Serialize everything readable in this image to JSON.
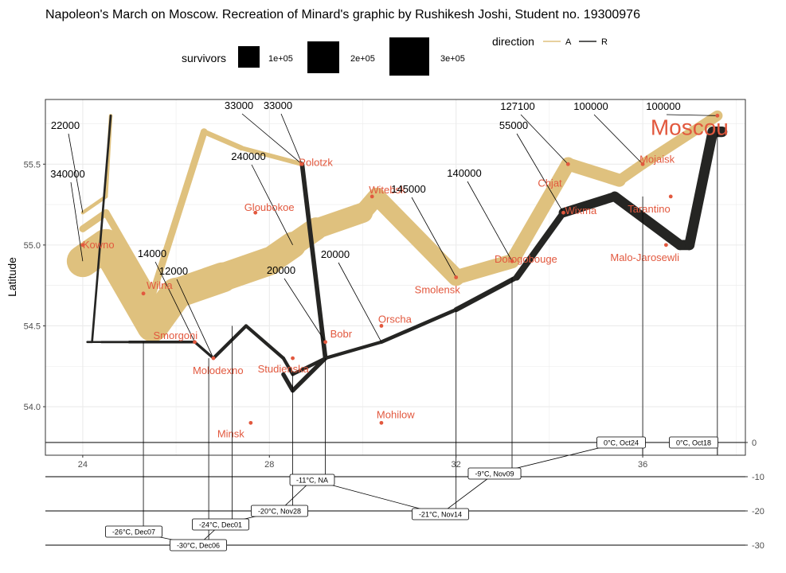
{
  "title": "Napoleon's March on Moscow. Recreation of Minard's graphic by Rushikesh Joshi, Student no. 19300976",
  "legend": {
    "survivors_title": "survivors",
    "survivors_items": [
      "1e+05",
      "2e+05",
      "3e+05"
    ],
    "direction_title": "direction",
    "direction_items": [
      "A",
      "R"
    ]
  },
  "colors": {
    "advance": "#dfc17e",
    "retreat": "#252523",
    "city": "#e2583e",
    "background": "#ffffff",
    "grid": "#ebebeb"
  },
  "chart_data": [
    {
      "type": "line",
      "title": "Napoleon's March on Moscow. Recreation of Minard's graphic by Rushikesh Joshi, Student no. 19300976",
      "xlabel": "",
      "ylabel": "Latitude",
      "xlim": [
        23.2,
        38.2
      ],
      "ylim": [
        53.7,
        55.9
      ],
      "x_ticks": [
        24,
        28,
        32,
        36
      ],
      "y_ticks": [
        54.0,
        54.5,
        55.0,
        55.5
      ],
      "y_tick_labels": [
        "54.0",
        "54.5",
        "55.0",
        "55.5"
      ],
      "grid": true,
      "series": [
        {
          "name": "A",
          "group": 1,
          "points": [
            {
              "lon": 24.0,
              "lat": 54.9,
              "survivors": 340000
            },
            {
              "lon": 24.5,
              "lat": 55.0,
              "survivors": 340000
            },
            {
              "lon": 25.5,
              "lat": 54.5,
              "survivors": 340000
            },
            {
              "lon": 26.0,
              "lat": 54.7,
              "survivors": 320000
            },
            {
              "lon": 27.0,
              "lat": 54.8,
              "survivors": 300000
            },
            {
              "lon": 28.0,
              "lat": 54.9,
              "survivors": 280000
            },
            {
              "lon": 28.5,
              "lat": 55.0,
              "survivors": 240000
            },
            {
              "lon": 29.0,
              "lat": 55.1,
              "survivors": 210000
            },
            {
              "lon": 30.0,
              "lat": 55.2,
              "survivors": 180000
            },
            {
              "lon": 30.3,
              "lat": 55.3,
              "survivors": 175000
            },
            {
              "lon": 32.0,
              "lat": 54.8,
              "survivors": 145000
            },
            {
              "lon": 33.2,
              "lat": 54.9,
              "survivors": 140000
            },
            {
              "lon": 34.4,
              "lat": 55.5,
              "survivors": 127100
            },
            {
              "lon": 35.5,
              "lat": 55.4,
              "survivors": 100000
            },
            {
              "lon": 36.0,
              "lat": 55.5,
              "survivors": 100000
            },
            {
              "lon": 37.6,
              "lat": 55.8,
              "survivors": 100000
            }
          ]
        },
        {
          "name": "R",
          "group": 1,
          "points": [
            {
              "lon": 37.7,
              "lat": 55.7,
              "survivors": 100000
            },
            {
              "lon": 37.5,
              "lat": 55.7,
              "survivors": 98000
            },
            {
              "lon": 37.0,
              "lat": 55.0,
              "survivors": 97000
            },
            {
              "lon": 36.8,
              "lat": 55.0,
              "survivors": 96000
            },
            {
              "lon": 35.4,
              "lat": 55.3,
              "survivors": 87000
            },
            {
              "lon": 34.3,
              "lat": 55.2,
              "survivors": 55000
            },
            {
              "lon": 33.3,
              "lat": 54.8,
              "survivors": 37000
            },
            {
              "lon": 32.0,
              "lat": 54.6,
              "survivors": 24000
            },
            {
              "lon": 30.4,
              "lat": 54.4,
              "survivors": 20000
            },
            {
              "lon": 29.2,
              "lat": 54.3,
              "survivors": 20000
            },
            {
              "lon": 28.5,
              "lat": 54.2,
              "survivors": 20000
            },
            {
              "lon": 28.3,
              "lat": 54.3,
              "survivors": 20000
            },
            {
              "lon": 27.5,
              "lat": 54.5,
              "survivors": 20000
            },
            {
              "lon": 26.8,
              "lat": 54.3,
              "survivors": 12000
            },
            {
              "lon": 26.4,
              "lat": 54.4,
              "survivors": 14000
            },
            {
              "lon": 25.0,
              "lat": 54.4,
              "survivors": 8000
            },
            {
              "lon": 24.4,
              "lat": 54.4,
              "survivors": 4000
            },
            {
              "lon": 24.2,
              "lat": 54.4,
              "survivors": 4000
            },
            {
              "lon": 24.1,
              "lat": 54.4,
              "survivors": 4000
            }
          ]
        },
        {
          "name": "A",
          "group": 2,
          "points": [
            {
              "lon": 24.0,
              "lat": 55.1,
              "survivors": 60000
            },
            {
              "lon": 24.5,
              "lat": 55.2,
              "survivors": 60000
            },
            {
              "lon": 25.5,
              "lat": 54.7,
              "survivors": 60000
            },
            {
              "lon": 26.6,
              "lat": 55.7,
              "survivors": 40000
            },
            {
              "lon": 27.4,
              "lat": 55.6,
              "survivors": 33000
            },
            {
              "lon": 28.7,
              "lat": 55.5,
              "survivors": 33000
            }
          ]
        },
        {
          "name": "R",
          "group": 2,
          "points": [
            {
              "lon": 28.7,
              "lat": 55.5,
              "survivors": 33000
            },
            {
              "lon": 29.2,
              "lat": 54.3,
              "survivors": 30000
            },
            {
              "lon": 28.5,
              "lat": 54.1,
              "survivors": 30000
            },
            {
              "lon": 28.3,
              "lat": 54.2,
              "survivors": 28000
            }
          ]
        },
        {
          "name": "A",
          "group": 3,
          "points": [
            {
              "lon": 24.0,
              "lat": 55.2,
              "survivors": 22000
            },
            {
              "lon": 24.5,
              "lat": 55.3,
              "survivors": 22000
            },
            {
              "lon": 24.6,
              "lat": 55.8,
              "survivors": 6000
            }
          ]
        },
        {
          "name": "R",
          "group": 3,
          "points": [
            {
              "lon": 24.6,
              "lat": 55.8,
              "survivors": 6000
            },
            {
              "lon": 24.2,
              "lat": 54.4,
              "survivors": 6000
            },
            {
              "lon": 24.1,
              "lat": 54.4,
              "survivors": 6000
            }
          ]
        }
      ],
      "cities": [
        {
          "name": "Kowno",
          "lon": 24.0,
          "lat": 55.0
        },
        {
          "name": "Wilna",
          "lon": 25.3,
          "lat": 54.7
        },
        {
          "name": "Smorgoni",
          "lon": 26.4,
          "lat": 54.4
        },
        {
          "name": "Molodexno",
          "lon": 26.8,
          "lat": 54.3
        },
        {
          "name": "Gloubokoe",
          "lon": 27.7,
          "lat": 55.2
        },
        {
          "name": "Minsk",
          "lon": 27.6,
          "lat": 53.9
        },
        {
          "name": "Studienska",
          "lon": 28.5,
          "lat": 54.3
        },
        {
          "name": "Polotzk",
          "lon": 28.7,
          "lat": 55.5
        },
        {
          "name": "Bobr",
          "lon": 29.2,
          "lat": 54.4
        },
        {
          "name": "Witebsk",
          "lon": 30.2,
          "lat": 55.3
        },
        {
          "name": "Orscha",
          "lon": 30.4,
          "lat": 54.5
        },
        {
          "name": "Mohilow",
          "lon": 30.4,
          "lat": 53.9
        },
        {
          "name": "Smolensk",
          "lon": 32.0,
          "lat": 54.8
        },
        {
          "name": "Dorogobouge",
          "lon": 33.2,
          "lat": 54.9
        },
        {
          "name": "Wixma",
          "lon": 34.3,
          "lat": 55.2
        },
        {
          "name": "Chjat",
          "lon": 34.4,
          "lat": 55.5
        },
        {
          "name": "Mojaisk",
          "lon": 36.0,
          "lat": 55.5
        },
        {
          "name": "Moscou",
          "lon": 37.6,
          "lat": 55.8
        },
        {
          "name": "Tarantino",
          "lon": 36.6,
          "lat": 55.3
        },
        {
          "name": "Malo-Jarosewli",
          "lon": 36.5,
          "lat": 55.0
        }
      ],
      "survivor_annotations": [
        {
          "text": "22000",
          "lon": 24.0,
          "lat": 55.2
        },
        {
          "text": "340000",
          "lon": 24.0,
          "lat": 54.9
        },
        {
          "text": "14000",
          "lon": 26.4,
          "lat": 54.4
        },
        {
          "text": "12000",
          "lon": 26.8,
          "lat": 54.3
        },
        {
          "text": "33000",
          "lon": 28.7,
          "lat": 55.5
        },
        {
          "text": "33000",
          "lon": 28.7,
          "lat": 55.5
        },
        {
          "text": "240000",
          "lon": 28.5,
          "lat": 55.0
        },
        {
          "text": "20000",
          "lon": 29.2,
          "lat": 54.4
        },
        {
          "text": "20000",
          "lon": 30.4,
          "lat": 54.4
        },
        {
          "text": "145000",
          "lon": 32.0,
          "lat": 54.8
        },
        {
          "text": "140000",
          "lon": 33.2,
          "lat": 54.9
        },
        {
          "text": "55000",
          "lon": 34.3,
          "lat": 55.2
        },
        {
          "text": "127100",
          "lon": 34.4,
          "lat": 55.5
        },
        {
          "text": "100000",
          "lon": 36.0,
          "lat": 55.5
        },
        {
          "text": "100000",
          "lon": 37.6,
          "lat": 55.8
        }
      ]
    },
    {
      "type": "line",
      "xlabel": "",
      "ylabel": "",
      "y_ticks": [
        0,
        -10,
        -20,
        -30
      ],
      "y_tick_labels": [
        "0",
        "-10",
        "-20",
        "-30"
      ],
      "temperature": [
        {
          "lon": 37.6,
          "temp": 0,
          "label": "0°C, Oct18"
        },
        {
          "lon": 36.0,
          "temp": 0,
          "label": "0°C, Oct24"
        },
        {
          "lon": 33.2,
          "temp": -9,
          "label": "-9°C, Nov09"
        },
        {
          "lon": 32.0,
          "temp": -21,
          "label": "-21°C, Nov14"
        },
        {
          "lon": 29.2,
          "temp": -11,
          "label": "-11°C, NA"
        },
        {
          "lon": 28.5,
          "temp": -20,
          "label": "-20°C, Nov28"
        },
        {
          "lon": 27.2,
          "temp": -24,
          "label": "-24°C, Dec01"
        },
        {
          "lon": 26.7,
          "temp": -30,
          "label": "-30°C, Dec06"
        },
        {
          "lon": 25.3,
          "temp": -26,
          "label": "-26°C, Dec07"
        }
      ]
    }
  ]
}
